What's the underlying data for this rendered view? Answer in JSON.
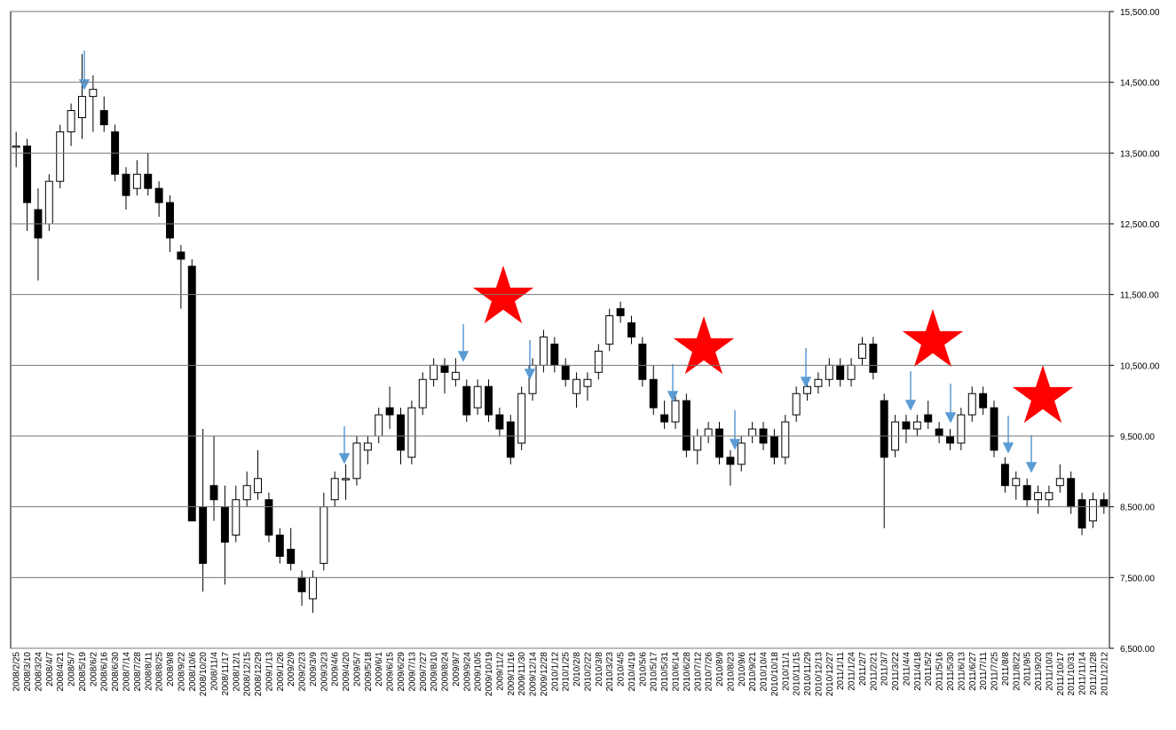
{
  "chart_data": {
    "type": "candlestick",
    "categories": [
      "2008/2/25",
      "2008/3/10",
      "2008/3/24",
      "2008/4/7",
      "2008/4/21",
      "2008/5/7",
      "2008/5/19",
      "2008/6/2",
      "2008/6/16",
      "2008/6/30",
      "2008/7/14",
      "2008/7/28",
      "2008/8/11",
      "2008/8/25",
      "2008/9/8",
      "2008/9/22",
      "2008/10/6",
      "2008/10/20",
      "2008/11/4",
      "2008/11/17",
      "2008/12/1",
      "2008/12/15",
      "2008/12/29",
      "2009/1/13",
      "2009/1/26",
      "2009/2/9",
      "2009/2/23",
      "2009/3/9",
      "2009/3/23",
      "2009/4/6",
      "2009/4/20",
      "2009/5/7",
      "2009/5/18",
      "2009/6/1",
      "2009/6/15",
      "2009/6/29",
      "2009/7/13",
      "2009/7/27",
      "2009/8/10",
      "2009/8/24",
      "2009/9/7",
      "2009/9/24",
      "2009/10/5",
      "2009/10/19",
      "2009/11/2",
      "2009/11/16",
      "2009/11/30",
      "2009/12/14",
      "2009/12/28",
      "2010/1/12",
      "2010/1/25",
      "2010/2/8",
      "2010/2/22",
      "2010/3/8",
      "2010/3/23",
      "2010/4/5",
      "2010/4/19",
      "2010/5/6",
      "2010/5/17",
      "2010/5/31",
      "2010/6/14",
      "2010/6/28",
      "2010/7/12",
      "2010/7/26",
      "2010/8/9",
      "2010/8/23",
      "2010/9/6",
      "2010/9/21",
      "2010/10/4",
      "2010/10/18",
      "2010/11/1",
      "2010/11/15",
      "2010/11/29",
      "2010/12/13",
      "2010/12/27",
      "2011/1/11",
      "2011/1/24",
      "2011/2/7",
      "2011/2/21",
      "2011/3/7",
      "2011/3/22",
      "2011/4/4",
      "2011/4/18",
      "2011/5/2",
      "2011/5/16",
      "2011/5/30",
      "2011/6/13",
      "2011/6/27",
      "2011/7/11",
      "2011/7/25",
      "2011/8/8",
      "2011/8/22",
      "2011/9/5",
      "2011/9/20",
      "2011/10/3",
      "2011/10/17",
      "2011/10/31",
      "2011/11/14",
      "2011/11/28",
      "2011/12/12"
    ],
    "open": [
      13600,
      13600,
      12700,
      12500,
      13100,
      13800,
      14000,
      14300,
      14100,
      13800,
      13200,
      13000,
      13200,
      13000,
      12800,
      12100,
      11900,
      8500,
      8800,
      8500,
      8100,
      8600,
      8700,
      8600,
      8100,
      7900,
      7500,
      7200,
      7700,
      8600,
      8900,
      8900,
      9300,
      9500,
      9900,
      9800,
      9200,
      9900,
      10300,
      10500,
      10300,
      10200,
      9900,
      10200,
      9800,
      9700,
      9400,
      10100,
      10500,
      10800,
      10500,
      10100,
      10200,
      10400,
      10800,
      11300,
      11100,
      10800,
      10300,
      9800,
      9700,
      10000,
      9300,
      9500,
      9600,
      9200,
      9100,
      9500,
      9600,
      9500,
      9200,
      9800,
      10100,
      10200,
      10300,
      10500,
      10300,
      10600,
      10800,
      10000,
      9300,
      9700,
      9600,
      9800,
      9600,
      9500,
      9400,
      9800,
      10100,
      9900,
      9100,
      8800,
      8800,
      8600,
      8600,
      8800,
      8900,
      8600,
      8300,
      8600
    ],
    "high": [
      13800,
      13700,
      13000,
      13200,
      13900,
      14200,
      14900,
      14600,
      14300,
      13900,
      13300,
      13400,
      13500,
      13100,
      12900,
      12200,
      12000,
      9600,
      9500,
      8800,
      8800,
      9000,
      9300,
      8700,
      8200,
      8200,
      7600,
      7600,
      8700,
      9000,
      9100,
      9500,
      9500,
      9900,
      10200,
      9900,
      10000,
      10400,
      10600,
      10600,
      10600,
      10300,
      10300,
      10300,
      9900,
      9800,
      10200,
      10600,
      11000,
      10900,
      10600,
      10400,
      10400,
      10800,
      11300,
      11400,
      11200,
      10900,
      10500,
      10000,
      10100,
      10100,
      9600,
      9700,
      9700,
      9300,
      9500,
      9700,
      9700,
      9600,
      9800,
      10200,
      10300,
      10400,
      10600,
      10600,
      10600,
      10900,
      10900,
      10100,
      9800,
      9800,
      9800,
      10000,
      9700,
      9600,
      9900,
      10200,
      10200,
      10000,
      9200,
      9000,
      8900,
      8800,
      8800,
      9100,
      9000,
      8700,
      8700,
      8700
    ],
    "low": [
      13300,
      12400,
      11700,
      12400,
      13000,
      13600,
      13700,
      13800,
      13800,
      13100,
      12700,
      12900,
      12900,
      12600,
      12100,
      11300,
      8300,
      7300,
      8300,
      7400,
      8000,
      8500,
      8600,
      8000,
      7700,
      7600,
      7100,
      7000,
      7600,
      8500,
      8600,
      8800,
      9100,
      9400,
      9600,
      9100,
      9100,
      9800,
      10200,
      10100,
      10200,
      9700,
      9800,
      9700,
      9500,
      9100,
      9300,
      10000,
      10400,
      10400,
      10200,
      9900,
      10000,
      10300,
      10700,
      11100,
      10800,
      10200,
      9800,
      9600,
      9600,
      9200,
      9100,
      9400,
      9100,
      8800,
      9000,
      9400,
      9300,
      9100,
      9100,
      9700,
      10000,
      10100,
      10200,
      10200,
      10200,
      10500,
      10300,
      8200,
      9200,
      9400,
      9500,
      9600,
      9400,
      9300,
      9300,
      9700,
      9800,
      9200,
      8700,
      8600,
      8500,
      8400,
      8500,
      8700,
      8400,
      8100,
      8200,
      8400
    ],
    "close": [
      13600,
      12800,
      12300,
      13100,
      13800,
      14100,
      14300,
      14400,
      13900,
      13200,
      12900,
      13200,
      13000,
      12800,
      12300,
      12000,
      8300,
      7700,
      8600,
      8000,
      8600,
      8800,
      8900,
      8100,
      7800,
      7700,
      7300,
      7500,
      8500,
      8900,
      8900,
      9400,
      9400,
      9800,
      9800,
      9300,
      9900,
      10300,
      10500,
      10400,
      10400,
      9800,
      10200,
      9800,
      9600,
      9200,
      10100,
      10500,
      10900,
      10500,
      10300,
      10300,
      10300,
      10700,
      11200,
      11200,
      10900,
      10300,
      9900,
      9700,
      10000,
      9300,
      9500,
      9600,
      9200,
      9100,
      9400,
      9600,
      9400,
      9200,
      9700,
      10100,
      10200,
      10300,
      10500,
      10300,
      10500,
      10800,
      10400,
      9200,
      9700,
      9600,
      9700,
      9700,
      9500,
      9400,
      9800,
      10100,
      9900,
      9300,
      8800,
      8900,
      8600,
      8700,
      8700,
      8900,
      8500,
      8200,
      8600,
      8500
    ],
    "up_color": "#ffffff",
    "down_color": "#000000",
    "ylim": [
      6500,
      15500
    ],
    "yticks": [
      {
        "value": 6500,
        "label": "6,500.00"
      },
      {
        "value": 7500,
        "label": "7,500.00"
      },
      {
        "value": 8500,
        "label": "8,500.00"
      },
      {
        "value": 9500,
        "label": "9,500.00"
      },
      {
        "value": 10500,
        "label": "10,500.00"
      },
      {
        "value": 11500,
        "label": "11,500.00"
      },
      {
        "value": 12500,
        "label": "12,500.00"
      },
      {
        "value": 13500,
        "label": "13,500.00"
      },
      {
        "value": 14500,
        "label": "14,500.00"
      },
      {
        "value": 15500,
        "label": "15,500.00"
      }
    ],
    "grid": true
  }
}
